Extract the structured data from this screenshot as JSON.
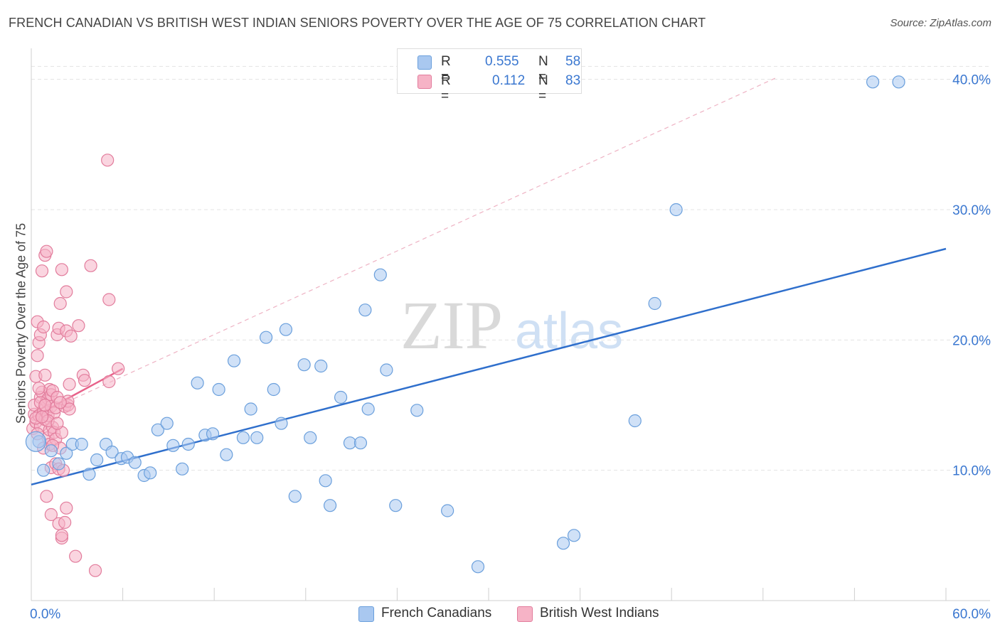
{
  "header": {
    "title": "FRENCH CANADIAN VS BRITISH WEST INDIAN SENIORS POVERTY OVER THE AGE OF 75 CORRELATION CHART",
    "source": "Source: ZipAtlas.com"
  },
  "watermark": {
    "zip": "ZIP",
    "atlas": "atlas"
  },
  "legend": {
    "r_label": "R =",
    "n_label": "N =",
    "rows": [
      {
        "r": "0.555",
        "n": "58"
      },
      {
        "r": "0.112",
        "n": "83"
      }
    ]
  },
  "colors": {
    "blue_fill": "#a9c8f0",
    "blue_stroke": "#6a9fdc",
    "blue_line": "#2f6fcc",
    "pink_fill": "#f6b3c6",
    "pink_stroke": "#e27c9c",
    "pink_line": "#e8628a",
    "axis_text": "#3a77d0",
    "grid": "#e3e3e3"
  },
  "chart_data": {
    "type": "scatter",
    "title": "FRENCH CANADIAN VS BRITISH WEST INDIAN SENIORS POVERTY OVER THE AGE OF 75 CORRELATION CHART",
    "xlabel": "",
    "ylabel": "Seniors Poverty Over the Age of 75",
    "xlim": [
      0,
      60
    ],
    "ylim": [
      0,
      42
    ],
    "x_tick_labels": [
      "0.0%",
      "60.0%"
    ],
    "y_ticks": [
      10,
      20,
      30,
      40
    ],
    "y_tick_labels": [
      "10.0%",
      "20.0%",
      "30.0%",
      "40.0%"
    ],
    "legend_position": "top-center",
    "series": [
      {
        "name": "French Canadians",
        "r": 0.555,
        "n": 58,
        "trend": {
          "x0": 0,
          "y0": 8.9,
          "x1": 60,
          "y1": 27.0
        },
        "points": [
          [
            0.5,
            12.2
          ],
          [
            0.8,
            10.0
          ],
          [
            1.3,
            11.5
          ],
          [
            1.8,
            10.5
          ],
          [
            2.3,
            11.3
          ],
          [
            2.7,
            12.0
          ],
          [
            3.3,
            12.0
          ],
          [
            3.8,
            9.7
          ],
          [
            4.3,
            10.8
          ],
          [
            4.9,
            12.0
          ],
          [
            5.3,
            11.4
          ],
          [
            5.9,
            10.9
          ],
          [
            6.3,
            11.0
          ],
          [
            6.8,
            10.6
          ],
          [
            7.4,
            9.6
          ],
          [
            7.8,
            9.8
          ],
          [
            8.3,
            13.1
          ],
          [
            8.9,
            13.6
          ],
          [
            9.3,
            11.9
          ],
          [
            9.9,
            10.1
          ],
          [
            10.3,
            12.0
          ],
          [
            10.9,
            16.7
          ],
          [
            11.4,
            12.7
          ],
          [
            11.9,
            12.8
          ],
          [
            12.3,
            16.2
          ],
          [
            12.8,
            11.2
          ],
          [
            13.3,
            18.4
          ],
          [
            13.9,
            12.5
          ],
          [
            14.4,
            14.7
          ],
          [
            14.8,
            12.5
          ],
          [
            15.4,
            20.2
          ],
          [
            15.9,
            16.2
          ],
          [
            16.4,
            13.6
          ],
          [
            16.7,
            20.8
          ],
          [
            17.3,
            8.0
          ],
          [
            17.9,
            18.1
          ],
          [
            18.3,
            12.5
          ],
          [
            19.0,
            18.0
          ],
          [
            19.3,
            9.2
          ],
          [
            19.6,
            7.3
          ],
          [
            20.3,
            15.6
          ],
          [
            20.9,
            12.1
          ],
          [
            21.6,
            12.1
          ],
          [
            21.9,
            22.3
          ],
          [
            22.1,
            14.7
          ],
          [
            22.9,
            25.0
          ],
          [
            23.3,
            17.7
          ],
          [
            23.9,
            7.3
          ],
          [
            25.3,
            14.6
          ],
          [
            27.3,
            6.9
          ],
          [
            29.3,
            2.6
          ],
          [
            34.9,
            4.4
          ],
          [
            35.6,
            5.0
          ],
          [
            39.6,
            13.8
          ],
          [
            40.9,
            22.8
          ],
          [
            42.3,
            30.0
          ],
          [
            55.2,
            39.8
          ],
          [
            56.9,
            39.8
          ]
        ]
      },
      {
        "name": "British West Indians",
        "r": 0.112,
        "n": 83,
        "trend": {
          "x0": 0,
          "y0": 14.0,
          "x1": 6.0,
          "y1": 17.8
        },
        "extended_trend": {
          "x0": 0,
          "y0": 14.0,
          "x1": 49,
          "y1": 40.2
        },
        "points": [
          [
            0.1,
            13.2
          ],
          [
            0.2,
            14.3
          ],
          [
            0.2,
            15.0
          ],
          [
            0.3,
            13.7
          ],
          [
            0.3,
            17.2
          ],
          [
            0.4,
            18.8
          ],
          [
            0.4,
            21.4
          ],
          [
            0.5,
            14.2
          ],
          [
            0.5,
            19.8
          ],
          [
            0.6,
            15.6
          ],
          [
            0.6,
            13.4
          ],
          [
            0.6,
            20.4
          ],
          [
            0.7,
            16.0
          ],
          [
            0.7,
            25.3
          ],
          [
            0.8,
            14.6
          ],
          [
            0.8,
            21.0
          ],
          [
            0.9,
            13.9
          ],
          [
            0.9,
            17.3
          ],
          [
            0.9,
            26.5
          ],
          [
            1.0,
            15.3
          ],
          [
            1.0,
            14.5
          ],
          [
            1.0,
            26.8
          ],
          [
            1.1,
            12.5
          ],
          [
            1.1,
            14.2
          ],
          [
            1.1,
            15.5
          ],
          [
            1.2,
            16.2
          ],
          [
            1.2,
            13.1
          ],
          [
            1.2,
            12.0
          ],
          [
            1.3,
            15.8
          ],
          [
            1.3,
            14.9
          ],
          [
            1.3,
            10.2
          ],
          [
            1.4,
            13.3
          ],
          [
            1.4,
            16.1
          ],
          [
            1.5,
            12.9
          ],
          [
            1.5,
            14.4
          ],
          [
            1.6,
            12.4
          ],
          [
            1.6,
            10.5
          ],
          [
            1.6,
            14.8
          ],
          [
            1.7,
            20.4
          ],
          [
            1.7,
            15.6
          ],
          [
            1.8,
            20.9
          ],
          [
            1.8,
            10.1
          ],
          [
            1.9,
            22.8
          ],
          [
            1.9,
            11.7
          ],
          [
            2.0,
            25.4
          ],
          [
            2.0,
            12.9
          ],
          [
            2.1,
            10.0
          ],
          [
            2.2,
            14.9
          ],
          [
            2.3,
            20.7
          ],
          [
            2.3,
            23.7
          ],
          [
            2.4,
            15.0
          ],
          [
            2.4,
            15.3
          ],
          [
            2.5,
            14.7
          ],
          [
            2.5,
            16.6
          ],
          [
            2.6,
            20.3
          ],
          [
            3.1,
            21.1
          ],
          [
            3.4,
            17.3
          ],
          [
            3.5,
            16.9
          ],
          [
            3.9,
            25.7
          ],
          [
            5.0,
            33.8
          ],
          [
            5.1,
            23.1
          ],
          [
            5.1,
            16.8
          ],
          [
            5.7,
            17.8
          ],
          [
            0.4,
            12.8
          ],
          [
            0.8,
            11.7
          ],
          [
            1.0,
            8.0
          ],
          [
            1.3,
            6.6
          ],
          [
            1.8,
            5.9
          ],
          [
            2.0,
            4.8
          ],
          [
            2.0,
            5.0
          ],
          [
            2.2,
            6.0
          ],
          [
            2.3,
            7.1
          ],
          [
            2.9,
            3.4
          ],
          [
            4.2,
            2.3
          ],
          [
            0.5,
            16.3
          ],
          [
            0.6,
            15.2
          ],
          [
            0.9,
            15.0
          ],
          [
            1.1,
            13.8
          ],
          [
            1.4,
            11.9
          ],
          [
            1.7,
            13.6
          ],
          [
            0.3,
            14.0
          ],
          [
            0.7,
            14.1
          ],
          [
            1.9,
            15.2
          ]
        ]
      }
    ]
  }
}
